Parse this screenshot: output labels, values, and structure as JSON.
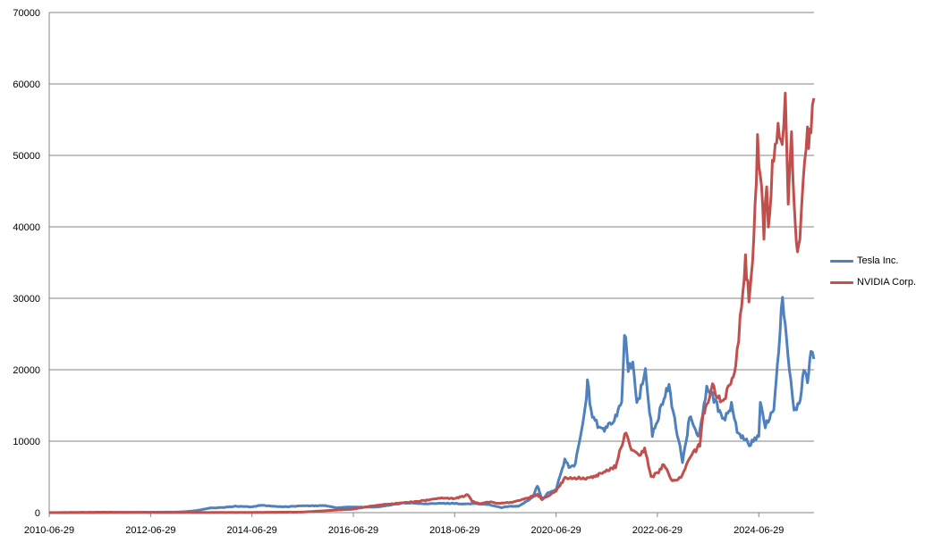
{
  "chart_data": {
    "type": "line",
    "title": "",
    "xlabel": "",
    "ylabel": "",
    "ylim": [
      0,
      70000
    ],
    "y_ticks": [
      "0",
      "10000",
      "20000",
      "30000",
      "40000",
      "50000",
      "60000",
      "70000"
    ],
    "x_ticks": [
      "2010-06-29",
      "2012-06-29",
      "2014-06-29",
      "2016-06-29",
      "2018-06-29",
      "2020-06-29",
      "2022-06-29",
      "2024-06-29"
    ],
    "xlim": [
      "2010-06-29",
      "2025-08-01"
    ],
    "grid": "horizontal",
    "legend_position": "right",
    "series": [
      {
        "name": "Tesla Inc.",
        "color": "#4f81bd",
        "points": [
          [
            "2010-06-29",
            0
          ],
          [
            "2011-06-29",
            10
          ],
          [
            "2012-06-29",
            60
          ],
          [
            "2013-01-01",
            80
          ],
          [
            "2013-03-15",
            150
          ],
          [
            "2013-06-01",
            300
          ],
          [
            "2013-09-01",
            650
          ],
          [
            "2013-12-01",
            700
          ],
          [
            "2014-03-01",
            900
          ],
          [
            "2014-06-29",
            800
          ],
          [
            "2014-09-01",
            1050
          ],
          [
            "2014-12-01",
            880
          ],
          [
            "2015-03-01",
            820
          ],
          [
            "2015-06-29",
            950
          ],
          [
            "2015-09-01",
            950
          ],
          [
            "2015-12-01",
            1000
          ],
          [
            "2016-03-01",
            680
          ],
          [
            "2016-06-29",
            800
          ],
          [
            "2016-09-01",
            770
          ],
          [
            "2016-12-01",
            760
          ],
          [
            "2017-03-01",
            1000
          ],
          [
            "2017-06-29",
            1350
          ],
          [
            "2017-09-01",
            1350
          ],
          [
            "2017-12-01",
            1200
          ],
          [
            "2018-03-01",
            1300
          ],
          [
            "2018-06-29",
            1300
          ],
          [
            "2018-09-01",
            1200
          ],
          [
            "2018-12-01",
            1250
          ],
          [
            "2019-03-01",
            1120
          ],
          [
            "2019-06-01",
            700
          ],
          [
            "2019-08-01",
            900
          ],
          [
            "2019-10-01",
            900
          ],
          [
            "2019-12-01",
            1600
          ],
          [
            "2020-01-15",
            2200
          ],
          [
            "2020-02-15",
            3800
          ],
          [
            "2020-03-20",
            1800
          ],
          [
            "2020-05-01",
            2700
          ],
          [
            "2020-06-29",
            3200
          ],
          [
            "2020-08-31",
            7500
          ],
          [
            "2020-09-30",
            6500
          ],
          [
            "2020-11-15",
            6800
          ],
          [
            "2020-12-15",
            10000
          ],
          [
            "2021-01-26",
            14500
          ],
          [
            "2021-02-10",
            18500
          ],
          [
            "2021-03-08",
            14000
          ],
          [
            "2021-05-15",
            11500
          ],
          [
            "2021-07-01",
            12000
          ],
          [
            "2021-09-01",
            13500
          ],
          [
            "2021-10-15",
            15500
          ],
          [
            "2021-11-04",
            25500
          ],
          [
            "2021-12-01",
            20000
          ],
          [
            "2022-01-03",
            21000
          ],
          [
            "2022-02-01",
            15000
          ],
          [
            "2022-04-04",
            19500
          ],
          [
            "2022-05-24",
            11000
          ],
          [
            "2022-06-29",
            12500
          ],
          [
            "2022-08-15",
            16500
          ],
          [
            "2022-09-21",
            17500
          ],
          [
            "2022-11-01",
            13000
          ],
          [
            "2022-12-27",
            7200
          ],
          [
            "2023-01-31",
            10500
          ],
          [
            "2023-02-15",
            13800
          ],
          [
            "2023-04-20",
            10500
          ],
          [
            "2023-06-20",
            17500
          ],
          [
            "2023-07-20",
            17000
          ],
          [
            "2023-09-01",
            15000
          ],
          [
            "2023-10-30",
            13000
          ],
          [
            "2023-12-15",
            15000
          ],
          [
            "2024-01-25",
            11500
          ],
          [
            "2024-04-22",
            9500
          ],
          [
            "2024-06-29",
            11000
          ],
          [
            "2024-07-10",
            15000
          ],
          [
            "2024-08-15",
            12000
          ],
          [
            "2024-10-15",
            14500
          ],
          [
            "2024-11-10",
            21000
          ],
          [
            "2024-12-17",
            30000
          ],
          [
            "2025-01-15",
            24000
          ],
          [
            "2025-02-15",
            19000
          ],
          [
            "2025-03-10",
            14000
          ],
          [
            "2025-04-15",
            15000
          ],
          [
            "2025-05-20",
            20000
          ],
          [
            "2025-06-15",
            18000
          ],
          [
            "2025-07-10",
            22500
          ],
          [
            "2025-07-31",
            21500
          ]
        ]
      },
      {
        "name": "NVIDIA Corp.",
        "color": "#c0504d",
        "points": [
          [
            "2010-06-29",
            0
          ],
          [
            "2011-06-29",
            60
          ],
          [
            "2012-06-29",
            20
          ],
          [
            "2013-06-29",
            20
          ],
          [
            "2014-06-29",
            30
          ],
          [
            "2015-06-29",
            80
          ],
          [
            "2016-06-29",
            500
          ],
          [
            "2016-12-01",
            1000
          ],
          [
            "2017-06-29",
            1400
          ],
          [
            "2017-12-01",
            1700
          ],
          [
            "2018-03-01",
            2000
          ],
          [
            "2018-06-29",
            2000
          ],
          [
            "2018-09-01",
            2300
          ],
          [
            "2018-10-01",
            2500
          ],
          [
            "2018-11-01",
            1600
          ],
          [
            "2018-12-24",
            1250
          ],
          [
            "2019-03-01",
            1500
          ],
          [
            "2019-06-01",
            1300
          ],
          [
            "2019-09-01",
            1500
          ],
          [
            "2019-12-01",
            2000
          ],
          [
            "2020-02-15",
            2500
          ],
          [
            "2020-03-20",
            1900
          ],
          [
            "2020-06-29",
            3000
          ],
          [
            "2020-09-01",
            4800
          ],
          [
            "2020-12-01",
            4900
          ],
          [
            "2021-03-01",
            4800
          ],
          [
            "2021-06-01",
            5500
          ],
          [
            "2021-09-01",
            6500
          ],
          [
            "2021-11-15",
            11500
          ],
          [
            "2021-12-15",
            9000
          ],
          [
            "2022-03-01",
            8000
          ],
          [
            "2022-03-29",
            9000
          ],
          [
            "2022-05-15",
            5000
          ],
          [
            "2022-06-29",
            5500
          ],
          [
            "2022-08-15",
            6800
          ],
          [
            "2022-10-15",
            4300
          ],
          [
            "2022-12-15",
            5000
          ],
          [
            "2023-02-15",
            7500
          ],
          [
            "2023-05-01",
            9500
          ],
          [
            "2023-05-25",
            13500
          ],
          [
            "2023-06-29",
            16000
          ],
          [
            "2023-08-01",
            17500
          ],
          [
            "2023-10-15",
            15500
          ],
          [
            "2023-12-01",
            17500
          ],
          [
            "2024-01-15",
            20000
          ],
          [
            "2024-02-26",
            29000
          ],
          [
            "2024-03-25",
            36000
          ],
          [
            "2024-04-19",
            29000
          ],
          [
            "2024-05-24",
            37000
          ],
          [
            "2024-06-20",
            51500
          ],
          [
            "2024-07-10",
            47000
          ],
          [
            "2024-08-05",
            39000
          ],
          [
            "2024-08-25",
            47000
          ],
          [
            "2024-09-06",
            40000
          ],
          [
            "2024-10-15",
            50000
          ],
          [
            "2024-11-15",
            53500
          ],
          [
            "2024-12-15",
            50000
          ],
          [
            "2025-01-06",
            56500
          ],
          [
            "2025-01-27",
            44000
          ],
          [
            "2025-02-20",
            52000
          ],
          [
            "2025-03-10",
            42000
          ],
          [
            "2025-04-04",
            36500
          ],
          [
            "2025-04-21",
            37000
          ],
          [
            "2025-05-15",
            48000
          ],
          [
            "2025-06-15",
            52000
          ],
          [
            "2025-07-10",
            54500
          ],
          [
            "2025-07-31",
            58000
          ]
        ]
      }
    ]
  }
}
